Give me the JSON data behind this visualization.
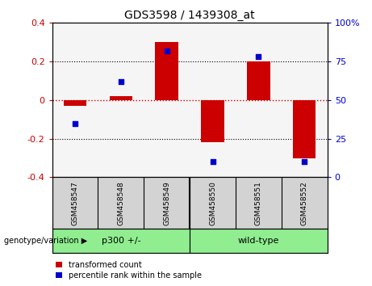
{
  "title": "GDS3598 / 1439308_at",
  "samples": [
    "GSM458547",
    "GSM458548",
    "GSM458549",
    "GSM458550",
    "GSM458551",
    "GSM458552"
  ],
  "transformed_count": [
    -0.03,
    0.02,
    0.3,
    -0.22,
    0.2,
    -0.3
  ],
  "percentile_rank": [
    35,
    62,
    82,
    10,
    78,
    10
  ],
  "bar_color": "#CC0000",
  "scatter_color": "#0000CC",
  "left_ylim": [
    -0.4,
    0.4
  ],
  "right_ylim": [
    0,
    100
  ],
  "left_yticks": [
    -0.4,
    -0.2,
    0.0,
    0.2,
    0.4
  ],
  "left_yticklabels": [
    "-0.4",
    "-0.2",
    "0",
    "0.2",
    "0.4"
  ],
  "right_yticks": [
    0,
    25,
    50,
    75,
    100
  ],
  "right_yticklabels": [
    "0",
    "25",
    "50",
    "75",
    "100%"
  ],
  "zero_line_color": "#CC0000",
  "background_color": "#ffffff",
  "plot_bg_color": "#f5f5f5",
  "sample_bg_color": "#d3d3d3",
  "group_color": "#90EE90",
  "group_labels": [
    "p300 +/-",
    "wild-type"
  ],
  "group_boundaries": [
    0,
    3,
    6
  ],
  "legend_items": [
    "transformed count",
    "percentile rank within the sample"
  ],
  "genotype_label": "genotype/variation",
  "bar_width": 0.5
}
